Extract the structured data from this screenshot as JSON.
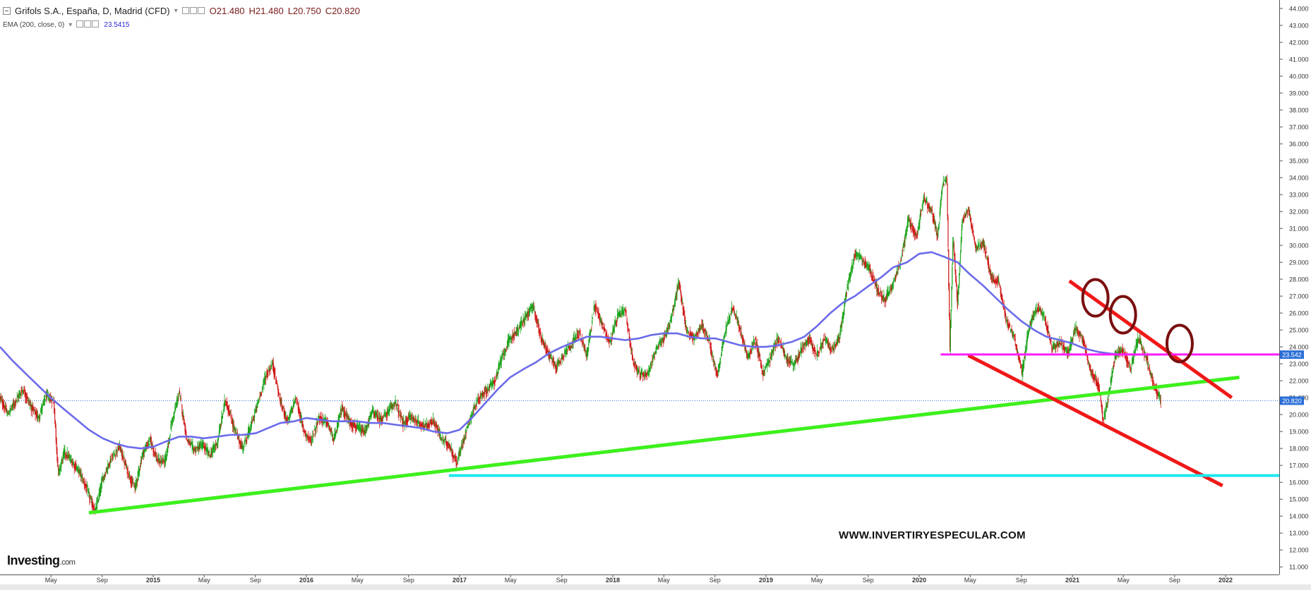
{
  "header": {
    "title": "Grifols S.A., España, D, Madrid (CFD)",
    "open": "O21.480",
    "high": "H21.480",
    "low": "L20.750",
    "close": "C20.820"
  },
  "indicator": {
    "label": "EMA (200, close, 0)",
    "value": "23.5415"
  },
  "watermark": "WWW.INVERTIRYESPECULAR.COM",
  "logo": {
    "name": "Investing",
    "suffix": ".com"
  },
  "colors": {
    "ema": "#6b6bea",
    "support_green": "#3ef01e",
    "channel_red": "#f01818",
    "horizontal_magenta": "#ff1cff",
    "horizontal_cyan": "#1ee8ee",
    "circles": "#7a0f0f",
    "candle_up": "#19a319",
    "candle_down": "#d01818",
    "price_badge": "#2b6fd8"
  },
  "chart_data": {
    "type": "line",
    "title": "Grifols S.A., España, D, Madrid (CFD)",
    "x_tick_labels": [
      "May",
      "Sep",
      "2015",
      "May",
      "Sep",
      "2016",
      "May",
      "Sep",
      "2017",
      "May",
      "Sep",
      "2018",
      "May",
      "Sep",
      "2019",
      "May",
      "Sep",
      "2020",
      "May",
      "Sep",
      "2021",
      "May",
      "Sep",
      "2022"
    ],
    "x_tick_dates": [
      2014.333,
      2014.667,
      2015.0,
      2015.333,
      2015.667,
      2016.0,
      2016.333,
      2016.667,
      2017.0,
      2017.333,
      2017.667,
      2018.0,
      2018.333,
      2018.667,
      2019.0,
      2019.333,
      2019.667,
      2020.0,
      2020.333,
      2020.667,
      2021.0,
      2021.333,
      2021.667,
      2022.0
    ],
    "y_tick_labels": [
      "44.000",
      "43.000",
      "42.000",
      "41.000",
      "40.000",
      "39.000",
      "38.000",
      "37.000",
      "36.000",
      "35.000",
      "34.000",
      "33.000",
      "32.000",
      "31.000",
      "30.000",
      "29.000",
      "28.000",
      "27.000",
      "26.000",
      "25.000",
      "24.000",
      "23.000",
      "22.000",
      "21.000",
      "20.000",
      "19.000",
      "18.000",
      "17.000",
      "16.000",
      "15.000",
      "14.000",
      "13.000",
      "12.000",
      "11.000"
    ],
    "ylim": [
      10.55,
      44.5
    ],
    "xlim": [
      2014.0,
      2022.35
    ],
    "price_series": {
      "name": "Grifols S.A.",
      "x": [
        2014.0,
        2014.05,
        2014.1,
        2014.15,
        2014.2,
        2014.25,
        2014.3,
        2014.35,
        2014.38,
        2014.42,
        2014.47,
        2014.52,
        2014.57,
        2014.62,
        2014.67,
        2014.72,
        2014.78,
        2014.83,
        2014.88,
        2014.93,
        2014.98,
        2015.03,
        2015.08,
        2015.12,
        2015.17,
        2015.22,
        2015.27,
        2015.32,
        2015.37,
        2015.42,
        2015.47,
        2015.52,
        2015.58,
        2015.63,
        2015.68,
        2015.73,
        2015.78,
        2015.83,
        2015.88,
        2015.93,
        2015.98,
        2016.03,
        2016.08,
        2016.13,
        2016.18,
        2016.23,
        2016.28,
        2016.33,
        2016.38,
        2016.43,
        2016.48,
        2016.53,
        2016.58,
        2016.63,
        2016.68,
        2016.73,
        2016.78,
        2016.83,
        2016.88,
        2016.93,
        2016.98,
        2017.03,
        2017.08,
        2017.13,
        2017.18,
        2017.23,
        2017.28,
        2017.33,
        2017.38,
        2017.43,
        2017.48,
        2017.53,
        2017.58,
        2017.63,
        2017.68,
        2017.73,
        2017.78,
        2017.83,
        2017.88,
        2017.93,
        2017.98,
        2018.03,
        2018.08,
        2018.13,
        2018.18,
        2018.23,
        2018.28,
        2018.33,
        2018.38,
        2018.43,
        2018.48,
        2018.53,
        2018.58,
        2018.63,
        2018.68,
        2018.73,
        2018.78,
        2018.83,
        2018.88,
        2018.93,
        2018.98,
        2019.03,
        2019.08,
        2019.13,
        2019.18,
        2019.23,
        2019.28,
        2019.33,
        2019.38,
        2019.43,
        2019.48,
        2019.53,
        2019.58,
        2019.63,
        2019.68,
        2019.73,
        2019.78,
        2019.83,
        2019.88,
        2019.93,
        2019.98,
        2020.03,
        2020.08,
        2020.12,
        2020.15,
        2020.18,
        2020.2,
        2020.22,
        2020.25,
        2020.28,
        2020.32,
        2020.37,
        2020.42,
        2020.47,
        2020.52,
        2020.57,
        2020.62,
        2020.67,
        2020.72,
        2020.77,
        2020.82,
        2020.87,
        2020.92,
        2020.97,
        2021.02,
        2021.07,
        2021.12,
        2021.17,
        2021.2,
        2021.23,
        2021.28,
        2021.33,
        2021.38,
        2021.43,
        2021.48,
        2021.53,
        2021.58
      ],
      "y": [
        21.0,
        20.0,
        20.8,
        21.5,
        20.5,
        19.8,
        21.1,
        20.8,
        16.5,
        17.8,
        17.2,
        16.6,
        15.5,
        14.2,
        16.2,
        17.3,
        18.1,
        16.7,
        15.6,
        17.7,
        18.5,
        17.2,
        17.3,
        19.5,
        21.3,
        18.5,
        17.9,
        18.2,
        17.6,
        18.4,
        20.9,
        19.4,
        18.0,
        19.1,
        20.6,
        22.2,
        23.0,
        20.7,
        19.6,
        21.0,
        19.1,
        18.4,
        19.8,
        19.6,
        18.5,
        20.4,
        19.6,
        19.2,
        18.9,
        20.2,
        19.7,
        20.1,
        20.8,
        19.4,
        19.9,
        19.5,
        19.3,
        19.6,
        18.6,
        18.2,
        17.1,
        18.7,
        20.1,
        21.0,
        21.5,
        22.0,
        23.5,
        24.5,
        25.0,
        25.8,
        26.4,
        24.6,
        23.6,
        22.8,
        23.6,
        24.2,
        24.8,
        23.5,
        26.5,
        25.3,
        24.2,
        25.8,
        26.2,
        23.2,
        22.3,
        22.5,
        23.8,
        24.5,
        25.6,
        27.8,
        25.0,
        24.5,
        25.3,
        24.3,
        22.2,
        24.8,
        26.3,
        25.1,
        23.3,
        24.5,
        22.4,
        23.4,
        24.6,
        23.3,
        22.9,
        23.8,
        24.6,
        23.5,
        24.5,
        23.8,
        24.6,
        27.5,
        29.5,
        29.1,
        28.5,
        27.3,
        26.8,
        27.7,
        29.2,
        31.5,
        30.5,
        32.8,
        32.0,
        30.5,
        33.5,
        34.0,
        23.8,
        30.5,
        26.5,
        31.5,
        32.2,
        29.8,
        30.1,
        28.1,
        27.8,
        25.5,
        24.6,
        22.4,
        25.4,
        26.3,
        25.6,
        23.9,
        24.3,
        23.6,
        25.1,
        24.4,
        22.5,
        21.7,
        19.6,
        20.8,
        23.6,
        23.8,
        22.7,
        24.5,
        23.4,
        21.8,
        20.8
      ]
    },
    "ema_series": {
      "name": "EMA (200, close, 0)",
      "x": [
        2014.0,
        2014.08,
        2014.17,
        2014.25,
        2014.33,
        2014.42,
        2014.5,
        2014.58,
        2014.67,
        2014.75,
        2014.83,
        2014.92,
        2015.0,
        2015.08,
        2015.17,
        2015.25,
        2015.33,
        2015.42,
        2015.5,
        2015.58,
        2015.67,
        2015.75,
        2015.83,
        2015.92,
        2016.0,
        2016.08,
        2016.17,
        2016.25,
        2016.33,
        2016.42,
        2016.5,
        2016.58,
        2016.67,
        2016.75,
        2016.83,
        2016.92,
        2017.0,
        2017.08,
        2017.17,
        2017.25,
        2017.33,
        2017.42,
        2017.5,
        2017.58,
        2017.67,
        2017.75,
        2017.83,
        2017.92,
        2018.0,
        2018.08,
        2018.17,
        2018.25,
        2018.33,
        2018.42,
        2018.5,
        2018.58,
        2018.67,
        2018.75,
        2018.83,
        2018.92,
        2019.0,
        2019.08,
        2019.17,
        2019.25,
        2019.33,
        2019.42,
        2019.5,
        2019.58,
        2019.67,
        2019.75,
        2019.83,
        2019.92,
        2020.0,
        2020.08,
        2020.17,
        2020.25,
        2020.33,
        2020.42,
        2020.5,
        2020.58,
        2020.67,
        2020.75,
        2020.83,
        2020.92,
        2021.0,
        2021.08,
        2021.17,
        2021.25,
        2021.33,
        2021.42,
        2021.5,
        2021.58
      ],
      "y": [
        24.0,
        23.2,
        22.4,
        21.7,
        21.0,
        20.3,
        19.7,
        19.1,
        18.6,
        18.3,
        18.1,
        18.0,
        18.1,
        18.4,
        18.7,
        18.7,
        18.6,
        18.7,
        18.8,
        18.8,
        18.9,
        19.2,
        19.5,
        19.6,
        19.8,
        19.7,
        19.6,
        19.6,
        19.6,
        19.5,
        19.5,
        19.4,
        19.3,
        19.2,
        19.0,
        18.9,
        19.1,
        19.8,
        20.7,
        21.5,
        22.2,
        22.7,
        23.1,
        23.6,
        24.0,
        24.3,
        24.6,
        24.6,
        24.5,
        24.4,
        24.5,
        24.7,
        24.8,
        24.8,
        24.6,
        24.5,
        24.5,
        24.3,
        24.1,
        24.0,
        24.0,
        24.1,
        24.3,
        24.6,
        25.2,
        26.0,
        26.6,
        27.0,
        27.6,
        28.1,
        28.7,
        29.0,
        29.5,
        29.6,
        29.3,
        29.0,
        28.3,
        27.6,
        26.9,
        26.2,
        25.5,
        25.0,
        24.6,
        24.4,
        24.2,
        23.9,
        23.7,
        23.6,
        23.55,
        23.55,
        23.54,
        23.5415
      ]
    },
    "trendlines": [
      {
        "name": "support-green",
        "x": [
          2014.58,
          2022.09
        ],
        "y": [
          14.2,
          22.2
        ]
      },
      {
        "name": "channel-top-red",
        "x": [
          2020.98,
          2022.04
        ],
        "y": [
          27.9,
          21.0
        ]
      },
      {
        "name": "channel-bottom-red",
        "x": [
          2020.32,
          2021.98
        ],
        "y": [
          23.5,
          15.8
        ]
      },
      {
        "name": "resistance-magenta",
        "x": [
          2020.14,
          2022.35
        ],
        "y": [
          23.55,
          23.55
        ]
      },
      {
        "name": "support-cyan",
        "x": [
          2016.93,
          2022.35
        ],
        "y": [
          16.4,
          16.4
        ]
      }
    ],
    "circles": [
      {
        "x": 2021.15,
        "y": 26.9
      },
      {
        "x": 2021.33,
        "y": 25.9
      },
      {
        "x": 2021.7,
        "y": 24.2
      }
    ],
    "current_price_line": 20.82,
    "price_badges": [
      "23.542",
      "20.820"
    ],
    "price_badge_values": [
      23.542,
      20.82
    ],
    "legend": "none",
    "grid": false
  }
}
